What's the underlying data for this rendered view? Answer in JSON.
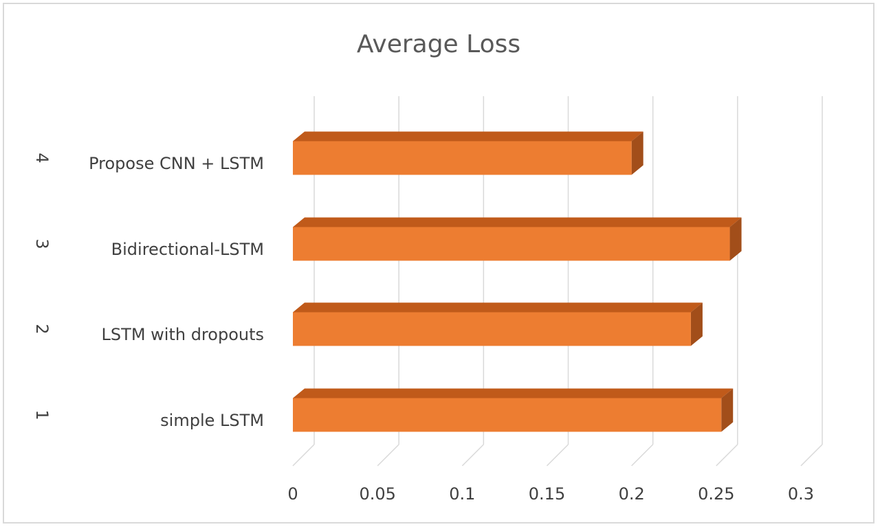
{
  "chart_data": {
    "type": "bar",
    "orientation": "horizontal",
    "style": "3d",
    "title": "Average Loss",
    "xlabel": "",
    "ylabel": "",
    "categories": [
      {
        "index": "1",
        "label": "simple LSTM"
      },
      {
        "index": "2",
        "label": "LSTM with dropouts"
      },
      {
        "index": "3",
        "label": "Bidirectional-LSTM"
      },
      {
        "index": "4",
        "label": "Propose CNN + LSTM"
      }
    ],
    "series": [
      {
        "name": "Average Loss",
        "values": [
          0.253,
          0.235,
          0.258,
          0.2
        ]
      }
    ],
    "xlim": [
      0,
      0.3
    ],
    "xticks": [
      "0",
      "0.05",
      "0.1",
      "0.15",
      "0.2",
      "0.25",
      "0.3"
    ],
    "grid": true,
    "colors": {
      "bar_front": "#ed7d31",
      "bar_top": "#c05a1a",
      "bar_side": "#a24e1a",
      "grid": "#d9d9d9",
      "text": "#404040",
      "title": "#595959"
    }
  }
}
